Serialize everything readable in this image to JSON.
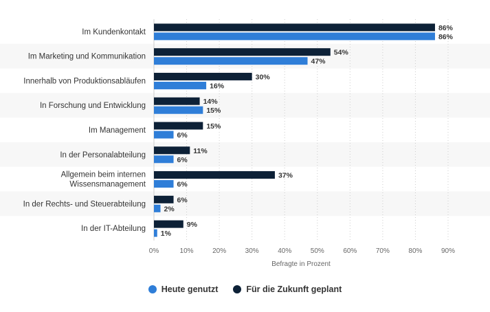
{
  "chart_data": {
    "type": "bar",
    "orientation": "horizontal",
    "categories": [
      [
        "Im Kundenkontakt"
      ],
      [
        "Im Marketing und Kommunikation"
      ],
      [
        "Innerhalb von Produktionsabläufen"
      ],
      [
        "In Forschung und Entwicklung"
      ],
      [
        "Im Management"
      ],
      [
        "In der Personalabteilung"
      ],
      [
        "Allgemein beim internen",
        "Wissensmanagement"
      ],
      [
        "In der Rechts- und Steuerabteilung"
      ],
      [
        "In der IT-Abteilung"
      ]
    ],
    "series": [
      {
        "name": "Für die Zukunft geplant",
        "color": "#0d2137",
        "values": [
          86,
          54,
          30,
          14,
          15,
          11,
          37,
          6,
          9
        ]
      },
      {
        "name": "Heute genutzt",
        "color": "#2f7ed8",
        "values": [
          86,
          47,
          16,
          15,
          6,
          6,
          6,
          2,
          1
        ]
      }
    ],
    "value_suffix": "%",
    "xlim": [
      0,
      90
    ],
    "xticks": [
      0,
      10,
      20,
      30,
      40,
      50,
      60,
      70,
      80,
      90
    ],
    "tick_suffix": "%",
    "xlabel": "Befragte in Prozent",
    "grid": true,
    "legend_position": "bottom-center"
  },
  "legend": [
    {
      "label": "Heute genutzt",
      "color": "#2f7ed8"
    },
    {
      "label": "Für die Zukunft geplant",
      "color": "#0d2137"
    }
  ]
}
